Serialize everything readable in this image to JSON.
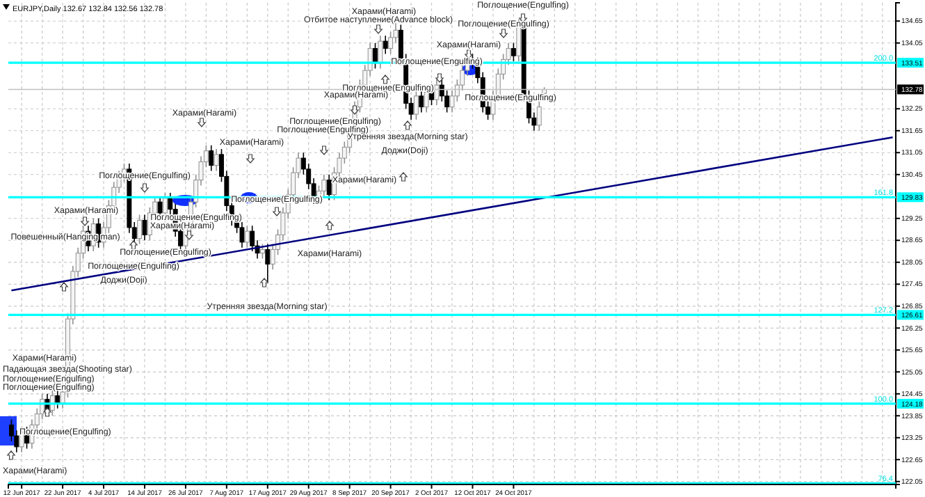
{
  "chart_data": {
    "type": "candlestick",
    "title": "EURJPY,Daily  132.67 132.84 132.56 132.78",
    "categories": [
      null,
      null,
      "12 Jun 2017",
      null,
      null,
      null,
      null,
      null,
      null,
      null,
      "22 Jun 2017",
      null,
      null,
      null,
      null,
      null,
      null,
      null,
      "4 Jul 2017",
      null,
      null,
      null,
      null,
      null,
      null,
      null,
      "14 Jul 2017",
      null,
      null,
      null,
      null,
      null,
      null,
      null,
      "26 Jul 2017",
      null,
      null,
      null,
      null,
      null,
      null,
      null,
      "7 Aug 2017",
      null,
      null,
      null,
      null,
      null,
      null,
      null,
      "17 Aug 2017",
      null,
      null,
      null,
      null,
      null,
      null,
      null,
      "29 Aug 2017",
      null,
      null,
      null,
      null,
      null,
      null,
      null,
      "8 Sep 2017",
      null,
      null,
      null,
      null,
      null,
      null,
      null,
      "20 Sep 2017",
      null,
      null,
      null,
      null,
      null,
      null,
      null,
      "2 Oct 2017",
      null,
      null,
      null,
      null,
      null,
      null,
      null,
      "12 Oct 2017",
      null,
      null,
      null,
      null,
      null,
      null,
      null,
      "24 Oct 2017",
      null,
      null,
      null,
      null,
      null,
      null,
      null,
      null,
      null,
      null,
      null,
      null,
      null,
      null,
      null,
      null,
      null,
      null,
      null,
      null,
      null,
      null,
      null,
      null,
      null,
      null,
      null,
      null,
      null,
      null,
      null,
      null,
      null,
      null,
      null,
      null,
      null,
      null,
      null,
      null,
      null,
      null,
      null,
      null,
      null,
      null,
      null,
      null,
      null,
      null,
      null,
      null,
      null,
      null,
      null,
      null,
      null,
      null,
      null,
      null,
      null,
      null,
      null,
      null,
      null,
      null,
      null,
      null,
      null,
      null,
      null,
      null,
      null,
      null
    ],
    "ohlc": [
      [
        123.6,
        123.75,
        123.15,
        123.3
      ],
      [
        123.3,
        123.45,
        122.85,
        123.0
      ],
      [
        123.0,
        123.55,
        122.85,
        123.4
      ],
      [
        123.4,
        123.55,
        122.95,
        123.1
      ],
      [
        123.1,
        123.75,
        122.95,
        123.6
      ],
      [
        123.6,
        124.05,
        123.45,
        123.9
      ],
      [
        123.9,
        124.45,
        123.75,
        124.3
      ],
      [
        124.3,
        124.45,
        123.85,
        124.0
      ],
      [
        124.0,
        124.55,
        123.85,
        124.4
      ],
      [
        124.4,
        124.55,
        124.05,
        124.2
      ],
      [
        124.2,
        124.65,
        124.05,
        124.5
      ],
      [
        124.5,
        126.65,
        124.35,
        126.5
      ],
      [
        126.5,
        127.95,
        126.35,
        127.8
      ],
      [
        127.8,
        128.45,
        127.65,
        128.3
      ],
      [
        128.3,
        129.05,
        128.15,
        128.9
      ],
      [
        128.9,
        129.05,
        128.35,
        128.5
      ],
      [
        128.5,
        129.25,
        128.35,
        129.1
      ],
      [
        129.1,
        129.25,
        128.45,
        128.6
      ],
      [
        128.6,
        129.15,
        128.45,
        129.0
      ],
      [
        129.0,
        129.75,
        128.85,
        129.6
      ],
      [
        129.6,
        130.25,
        129.45,
        130.1
      ],
      [
        130.1,
        130.55,
        129.95,
        130.4
      ],
      [
        130.4,
        130.75,
        130.25,
        130.6
      ],
      [
        130.6,
        130.75,
        128.85,
        129.0
      ],
      [
        129.0,
        129.15,
        128.55,
        128.7
      ],
      [
        128.7,
        129.35,
        128.55,
        129.2
      ],
      [
        129.2,
        129.35,
        128.65,
        128.8
      ],
      [
        128.8,
        129.55,
        128.65,
        129.4
      ],
      [
        129.4,
        129.85,
        129.25,
        129.7
      ],
      [
        129.7,
        129.85,
        129.25,
        129.4
      ],
      [
        129.4,
        129.95,
        129.25,
        129.8
      ],
      [
        129.8,
        129.95,
        129.35,
        129.5
      ],
      [
        129.5,
        129.65,
        128.75,
        128.9
      ],
      [
        128.9,
        129.05,
        128.35,
        128.5
      ],
      [
        128.5,
        129.15,
        128.35,
        129.0
      ],
      [
        129.0,
        129.85,
        128.85,
        129.7
      ],
      [
        129.7,
        130.45,
        129.55,
        130.3
      ],
      [
        130.3,
        130.95,
        130.15,
        130.8
      ],
      [
        130.8,
        131.25,
        130.65,
        131.1
      ],
      [
        131.1,
        131.25,
        130.55,
        130.7
      ],
      [
        130.7,
        131.15,
        130.55,
        131.0
      ],
      [
        131.0,
        131.15,
        130.25,
        130.4
      ],
      [
        130.4,
        130.55,
        129.45,
        129.6
      ],
      [
        129.6,
        129.75,
        129.05,
        129.2
      ],
      [
        129.2,
        129.35,
        128.85,
        129.0
      ],
      [
        129.0,
        129.15,
        128.45,
        128.6
      ],
      [
        128.6,
        129.05,
        128.45,
        128.9
      ],
      [
        128.9,
        129.05,
        128.35,
        128.5
      ],
      [
        128.5,
        128.65,
        128.15,
        128.3
      ],
      [
        128.3,
        128.55,
        128.15,
        128.4
      ],
      [
        128.4,
        128.55,
        127.5,
        128.0
      ],
      [
        128.0,
        128.55,
        127.85,
        128.4
      ],
      [
        128.4,
        128.95,
        128.25,
        128.8
      ],
      [
        128.8,
        129.55,
        128.65,
        129.4
      ],
      [
        129.4,
        130.05,
        129.25,
        129.9
      ],
      [
        129.9,
        130.65,
        129.75,
        130.5
      ],
      [
        130.5,
        131.05,
        130.35,
        130.9
      ],
      [
        130.9,
        131.05,
        130.45,
        130.6
      ],
      [
        130.6,
        130.75,
        130.05,
        130.2
      ],
      [
        130.2,
        130.35,
        129.65,
        129.8
      ],
      [
        129.8,
        130.15,
        129.65,
        130.0
      ],
      [
        130.0,
        130.45,
        129.85,
        130.3
      ],
      [
        130.3,
        130.45,
        129.75,
        129.9
      ],
      [
        129.9,
        130.65,
        129.75,
        130.5
      ],
      [
        130.5,
        131.05,
        130.35,
        130.9
      ],
      [
        130.9,
        131.35,
        130.75,
        131.2
      ],
      [
        131.2,
        131.75,
        131.05,
        131.6
      ],
      [
        131.6,
        132.45,
        131.45,
        132.3
      ],
      [
        132.3,
        133.05,
        132.15,
        132.9
      ],
      [
        132.9,
        133.45,
        132.75,
        133.3
      ],
      [
        133.3,
        134.05,
        133.15,
        133.9
      ],
      [
        133.9,
        134.05,
        133.35,
        133.5
      ],
      [
        133.5,
        134.25,
        133.35,
        134.1
      ],
      [
        134.1,
        134.25,
        133.75,
        133.9
      ],
      [
        133.9,
        134.35,
        133.75,
        134.2
      ],
      [
        134.2,
        134.6,
        134.05,
        134.4
      ],
      [
        134.4,
        134.55,
        133.45,
        133.6
      ],
      [
        133.6,
        133.75,
        132.25,
        132.4
      ],
      [
        132.4,
        132.55,
        131.95,
        132.1
      ],
      [
        132.1,
        132.75,
        131.95,
        132.6
      ],
      [
        132.6,
        132.75,
        132.15,
        132.3
      ],
      [
        132.3,
        132.85,
        132.15,
        132.7
      ],
      [
        132.7,
        132.85,
        132.35,
        132.5
      ],
      [
        132.5,
        133.05,
        132.35,
        132.9
      ],
      [
        132.9,
        133.05,
        132.45,
        132.6
      ],
      [
        132.6,
        132.75,
        132.15,
        132.3
      ],
      [
        132.3,
        132.75,
        132.15,
        132.6
      ],
      [
        132.6,
        133.05,
        132.45,
        132.9
      ],
      [
        132.9,
        133.45,
        132.75,
        133.3
      ],
      [
        133.3,
        133.75,
        133.15,
        133.6
      ],
      [
        133.6,
        133.75,
        133.35,
        133.5
      ],
      [
        133.5,
        133.65,
        132.95,
        133.1
      ],
      [
        133.1,
        133.25,
        132.15,
        132.3
      ],
      [
        132.3,
        132.45,
        131.95,
        132.1
      ],
      [
        132.1,
        132.75,
        131.95,
        132.6
      ],
      [
        132.6,
        133.35,
        132.45,
        133.2
      ],
      [
        133.2,
        133.75,
        133.05,
        133.6
      ],
      [
        133.6,
        134.05,
        133.45,
        133.9
      ],
      [
        133.9,
        134.05,
        133.55,
        133.7
      ],
      [
        133.7,
        134.7,
        133.55,
        134.5
      ],
      [
        134.5,
        134.65,
        132.45,
        132.6
      ],
      [
        132.6,
        132.75,
        131.85,
        132.0
      ],
      [
        132.0,
        132.15,
        131.65,
        131.8
      ],
      [
        131.8,
        132.45,
        131.65,
        132.3
      ],
      [
        132.67,
        132.84,
        132.56,
        132.78
      ],
      null,
      null,
      null,
      null,
      null,
      null,
      null,
      null,
      null,
      null,
      null,
      null,
      null,
      null,
      null,
      null,
      null,
      null,
      null,
      null,
      null,
      null,
      null,
      null,
      null,
      null,
      null,
      null,
      null,
      null,
      null,
      null,
      null,
      null,
      null,
      null,
      null,
      null,
      null,
      null,
      null,
      null,
      null,
      null,
      null,
      null,
      null,
      null,
      null,
      null,
      null,
      null,
      null,
      null,
      null,
      null,
      null,
      null,
      null,
      null,
      null,
      null,
      null,
      null,
      null,
      null,
      null,
      null
    ],
    "series": [
      {
        "type": "line",
        "color": "#000080",
        "values": [
          127.28,
          null,
          null,
          null,
          null,
          null,
          null,
          null,
          null,
          null,
          null,
          null,
          null,
          null,
          null,
          null,
          null,
          null,
          null,
          null,
          null,
          null,
          null,
          null,
          null,
          null,
          null,
          null,
          null,
          null,
          null,
          null,
          null,
          null,
          null,
          null,
          null,
          null,
          null,
          null,
          null,
          null,
          null,
          null,
          null,
          null,
          null,
          null,
          null,
          null,
          null,
          null,
          null,
          null,
          null,
          null,
          null,
          null,
          null,
          null,
          null,
          null,
          null,
          null,
          null,
          null,
          null,
          null,
          null,
          null,
          null,
          null,
          null,
          null,
          null,
          null,
          null,
          null,
          null,
          null,
          null,
          null,
          null,
          null,
          null,
          null,
          null,
          null,
          null,
          null,
          null,
          null,
          null,
          null,
          null,
          null,
          null,
          null,
          null,
          null,
          null,
          null,
          null,
          null,
          null,
          null,
          null,
          null,
          null,
          null,
          null,
          null,
          null,
          null,
          null,
          null,
          null,
          null,
          null,
          null,
          null,
          null,
          null,
          null,
          null,
          null,
          null,
          null,
          null,
          null,
          null,
          null,
          null,
          null,
          null,
          null,
          null,
          null,
          null,
          null,
          null,
          null,
          null,
          null,
          null,
          null,
          null,
          null,
          null,
          null,
          null,
          null,
          null,
          null,
          null,
          null,
          null,
          null,
          null,
          null,
          null,
          null,
          null,
          null,
          null,
          null,
          null,
          null,
          null,
          null,
          null,
          null,
          131.47
        ]
      }
    ],
    "ylim": [
      121.97,
      135.15
    ],
    "yticks": [
      122.05,
      122.65,
      123.25,
      123.85,
      124.45,
      125.05,
      125.65,
      126.25,
      126.85,
      127.45,
      128.05,
      128.65,
      129.25,
      130.45,
      131.05,
      131.65,
      132.25,
      134.05,
      134.65
    ],
    "grid": true,
    "ref_lines": [
      {
        "axis": "y",
        "value": 133.51,
        "label": "133.51",
        "color": "#00ffff"
      },
      {
        "axis": "y",
        "value": 129.83,
        "label": "129.83",
        "color": "#00ffff"
      },
      {
        "axis": "y",
        "value": 126.61,
        "label": "126.61",
        "color": "#00ffff"
      },
      {
        "axis": "y",
        "value": 124.18,
        "label": "124.18",
        "color": "#00ffff"
      },
      {
        "axis": "y",
        "value": 122.0,
        "color": "#00ffff"
      },
      {
        "axis": "y",
        "value": 132.78,
        "label": "132.78",
        "color": "#c0c0c0"
      }
    ],
    "annotations": [
      "200.0",
      "161.8",
      "127.2",
      "100.0",
      "76.4",
      "Харами(Harami)",
      "Отбитое наступление(Advance block)",
      {
        "text": "Поглощение(Engulfing)",
        "y": 134.75
      },
      "Поглощение(Engulfing)",
      "Харами(Harami)",
      "Поглощение(Engulfing)",
      "Поглощение(Engulfing)",
      "Харами(Harami)",
      "Поглощение(Engulfing)",
      "Харами(Harami)",
      "Харами(Harami)",
      "Поглощение(Engulfing)",
      "Поглощение(Engulfing)",
      "Утренняя звезда(Morning star)",
      "Доджи(Doji)",
      "Харами(Harami)",
      {
        "text": "Поглощение(Engulfing)",
        "y": 130.08
      },
      "Поглощение(Engulfing)",
      "Харами(Harami)",
      {
        "text": "Поглощение(Engulfing)",
        "y": 128.94
      },
      "Харами(Harami)",
      "Повешенный(Hanging man)",
      "Поглощение(Engulfing)",
      "Поглощение(Engulfing)",
      "Доджи(Doji)",
      "Харами(Harami)",
      "Утренняя звезда(Morning star)",
      "Харами(Harami)",
      "Падающая звезда(Shooting star)",
      "Поглощение(Engulfing)",
      "Поглощение(Engulfing)",
      "Поглощение(Engulfing)",
      "Харами(Harami)"
    ]
  }
}
